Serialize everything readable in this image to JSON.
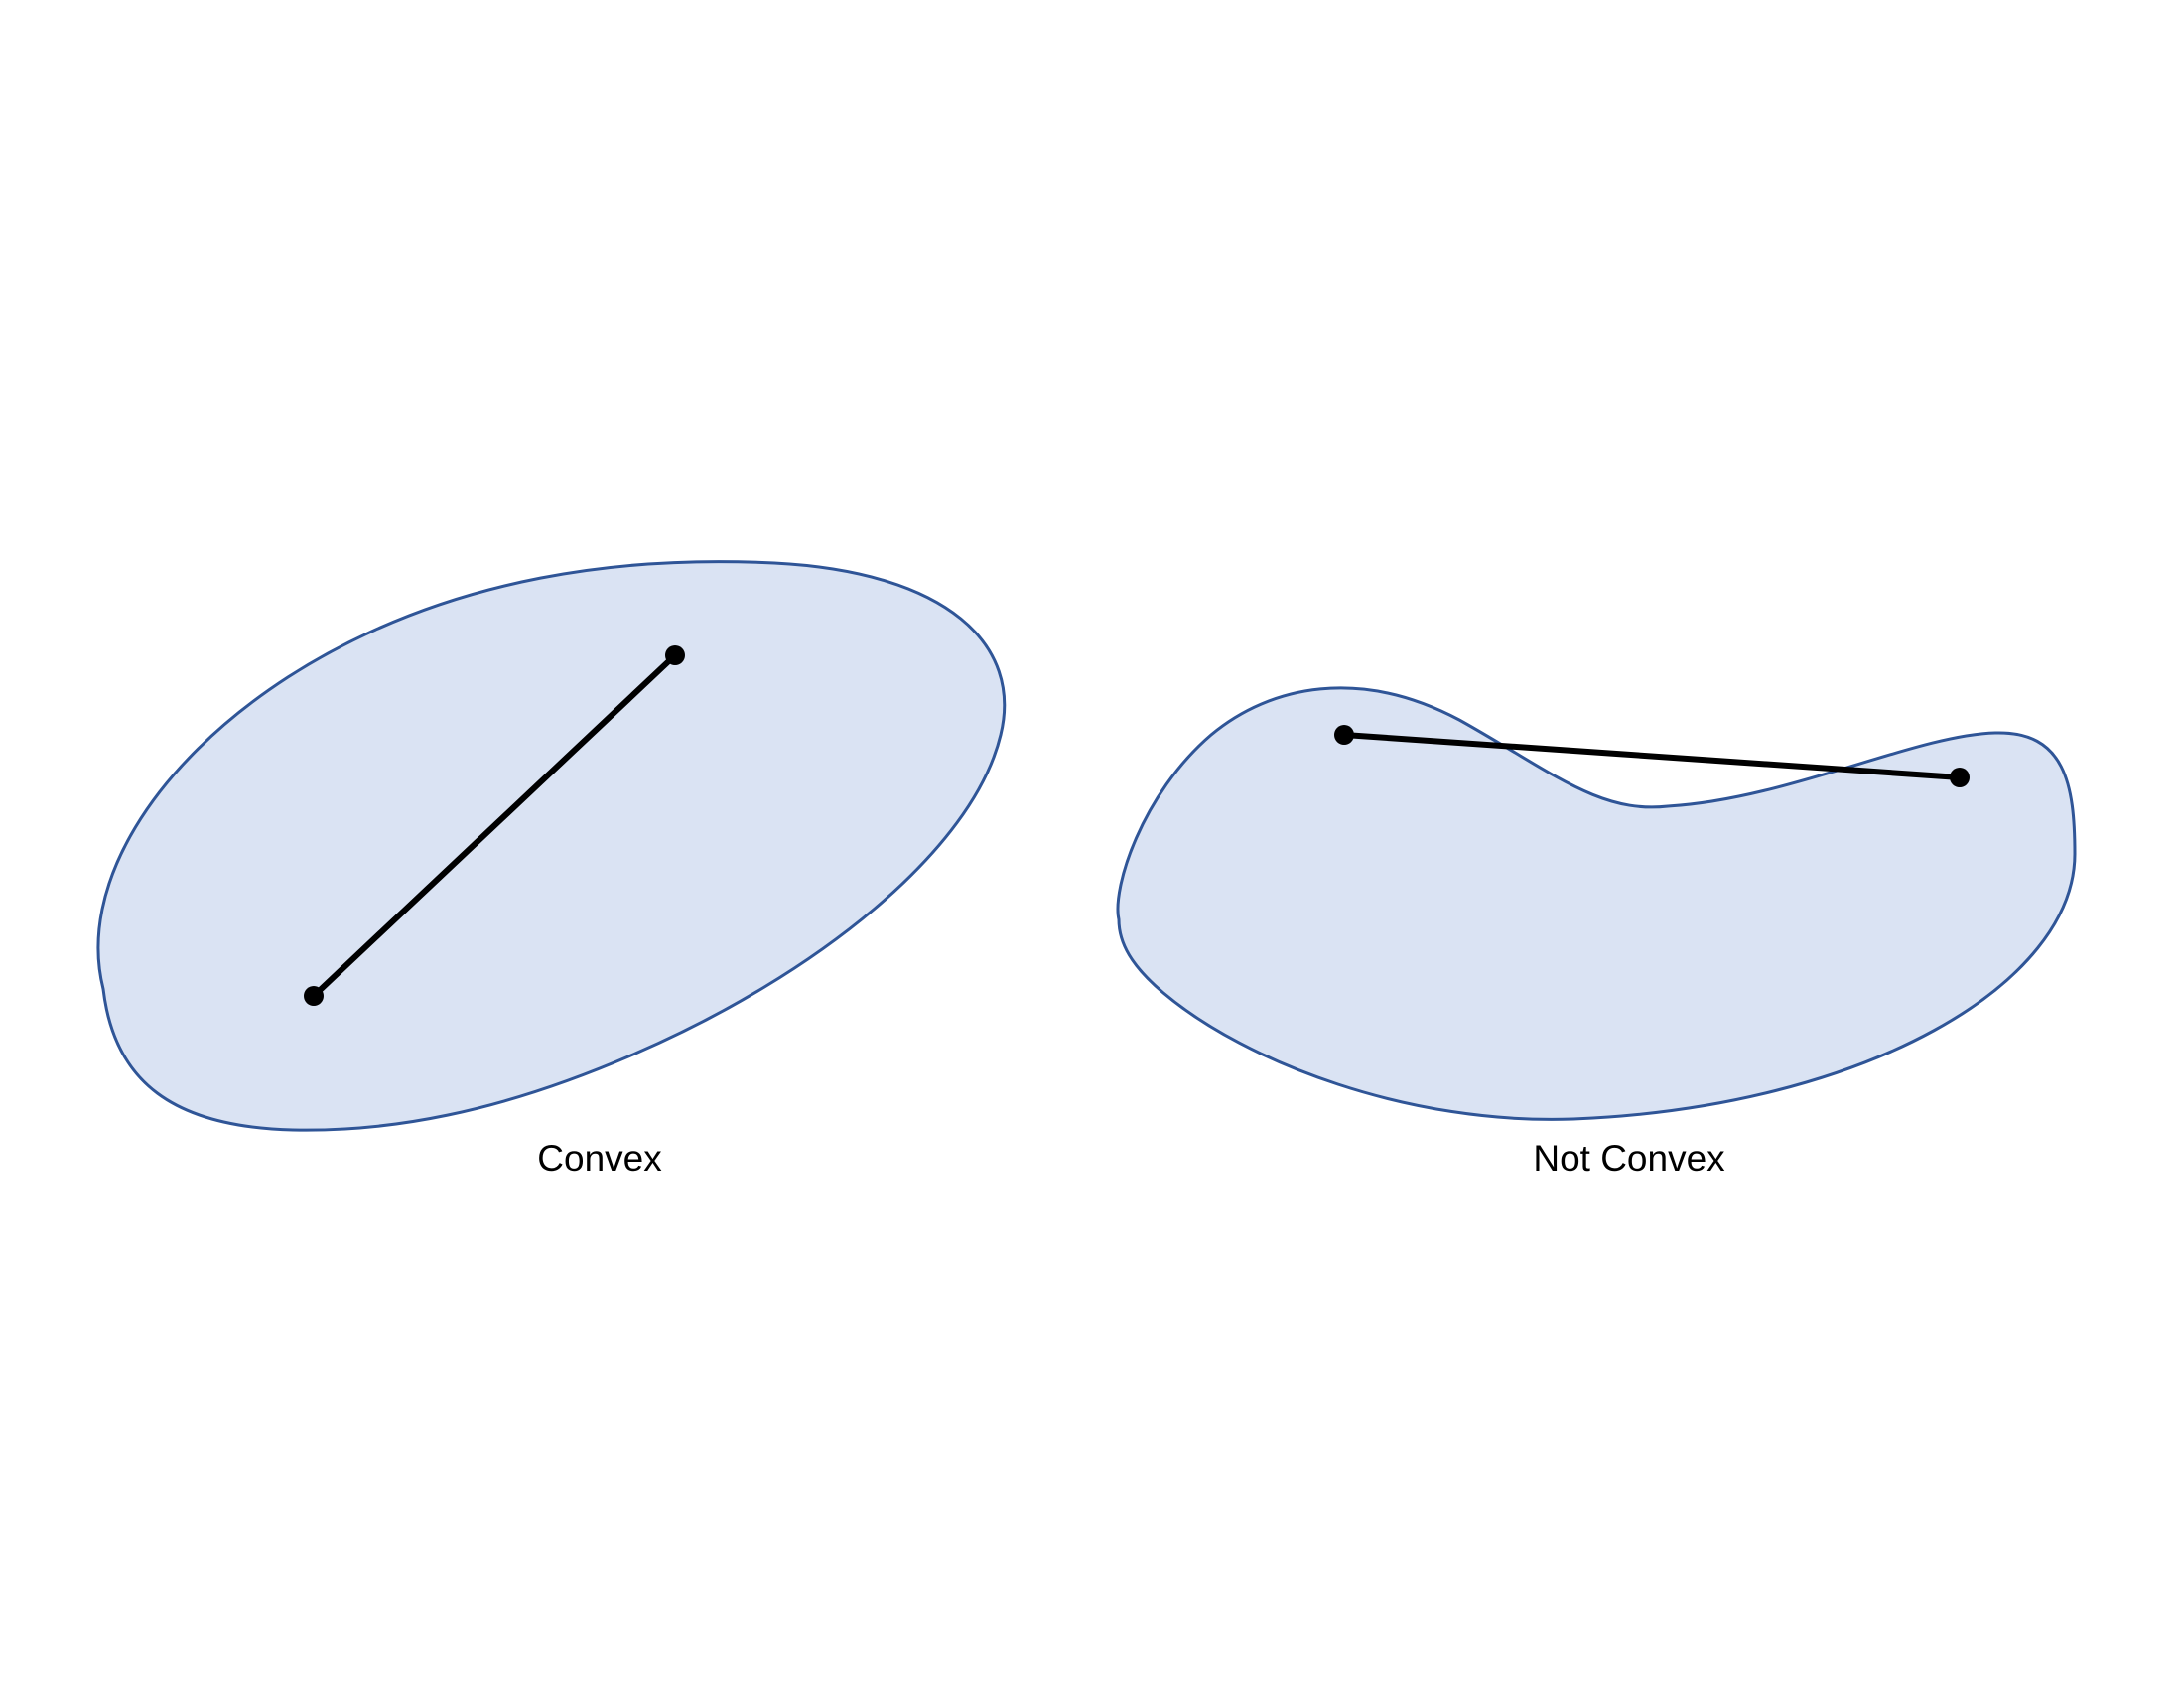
{
  "figures": [
    {
      "id": "convex",
      "caption": "Convex",
      "fill_color": "#dae3f3",
      "outline_color": "#2f5597"
    },
    {
      "id": "not-convex",
      "caption": "Not Convex",
      "fill_color": "#dae3f3",
      "outline_color": "#2f5597"
    }
  ],
  "segment_color": "#000000"
}
